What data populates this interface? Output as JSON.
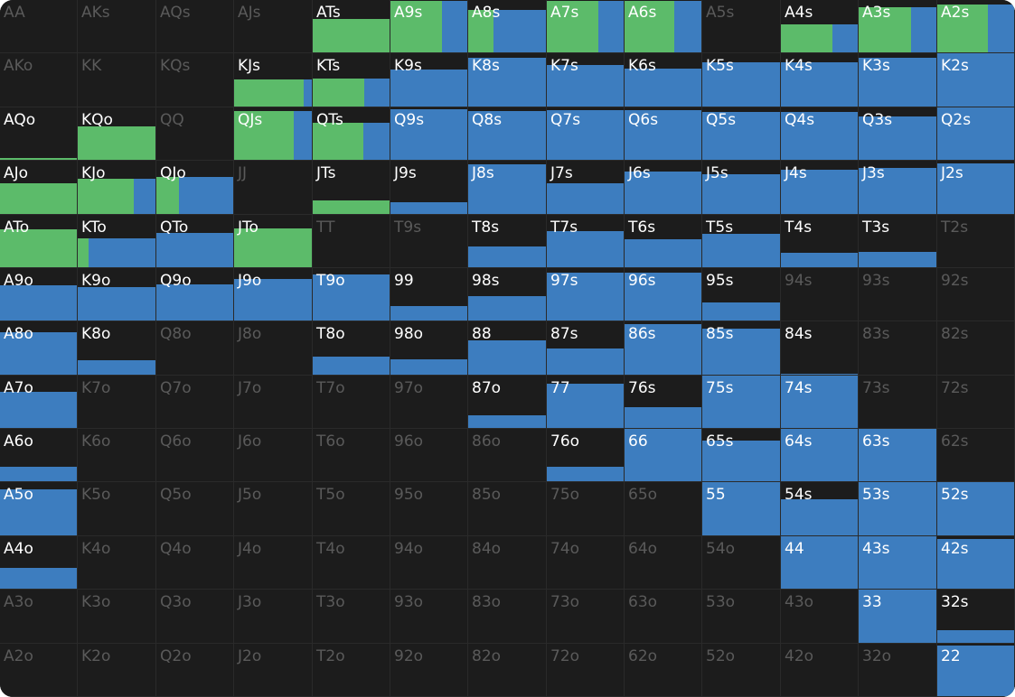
{
  "colors": {
    "background": "#1c1c1c",
    "grid_line": "#2a2a2a",
    "green": "#5cbb6a",
    "blue": "#3d7dbf",
    "label_active": "#ffffff",
    "label_inactive": "#5a5a5a"
  },
  "rows": [
    [
      {
        "label": "AA",
        "freq": 0,
        "green": 0
      },
      {
        "label": "AKs",
        "freq": 0,
        "green": 0
      },
      {
        "label": "AQs",
        "freq": 0,
        "green": 0
      },
      {
        "label": "AJs",
        "freq": 0,
        "green": 0
      },
      {
        "label": "ATs",
        "freq": 0.64,
        "green": 1
      },
      {
        "label": "A9s",
        "freq": 0.98,
        "green": 0.67
      },
      {
        "label": "A8s",
        "freq": 0.81,
        "green": 0.33
      },
      {
        "label": "A7s",
        "freq": 0.98,
        "green": 0.67
      },
      {
        "label": "A6s",
        "freq": 0.98,
        "green": 0.65
      },
      {
        "label": "A5s",
        "freq": 0,
        "green": 0
      },
      {
        "label": "A4s",
        "freq": 0.53,
        "green": 0.67
      },
      {
        "label": "A3s",
        "freq": 0.86,
        "green": 0.67
      },
      {
        "label": "A2s",
        "freq": 0.92,
        "green": 0.66
      }
    ],
    [
      {
        "label": "AKo",
        "freq": 0,
        "green": 0
      },
      {
        "label": "KK",
        "freq": 0,
        "green": 0
      },
      {
        "label": "KQs",
        "freq": 0,
        "green": 0
      },
      {
        "label": "KJs",
        "freq": 0.51,
        "green": 0.9
      },
      {
        "label": "KTs",
        "freq": 0.53,
        "green": 0.67
      },
      {
        "label": "K9s",
        "freq": 0.69,
        "green": 0
      },
      {
        "label": "K8s",
        "freq": 0.92,
        "green": 0
      },
      {
        "label": "K7s",
        "freq": 0.78,
        "green": 0
      },
      {
        "label": "K6s",
        "freq": 0.71,
        "green": 0
      },
      {
        "label": "K5s",
        "freq": 0.83,
        "green": 0
      },
      {
        "label": "K4s",
        "freq": 0.83,
        "green": 0
      },
      {
        "label": "K3s",
        "freq": 0.92,
        "green": 0
      },
      {
        "label": "K2s",
        "freq": 1,
        "green": 0
      }
    ],
    [
      {
        "label": "AQo",
        "freq": 0.03,
        "green": 1
      },
      {
        "label": "KQo",
        "freq": 0.63,
        "green": 1
      },
      {
        "label": "QQ",
        "freq": 0,
        "green": 0
      },
      {
        "label": "QJs",
        "freq": 0.93,
        "green": 0.77
      },
      {
        "label": "QTs",
        "freq": 0.71,
        "green": 0.66
      },
      {
        "label": "Q9s",
        "freq": 0.97,
        "green": 0
      },
      {
        "label": "Q8s",
        "freq": 0.93,
        "green": 0
      },
      {
        "label": "Q7s",
        "freq": 0.95,
        "green": 0
      },
      {
        "label": "Q6s",
        "freq": 0.95,
        "green": 0
      },
      {
        "label": "Q5s",
        "freq": 0.92,
        "green": 0
      },
      {
        "label": "Q4s",
        "freq": 0.92,
        "green": 0
      },
      {
        "label": "Q3s",
        "freq": 0.83,
        "green": 0
      },
      {
        "label": "Q2s",
        "freq": 1,
        "green": 0
      }
    ],
    [
      {
        "label": "AJo",
        "freq": 0.58,
        "green": 1
      },
      {
        "label": "KJo",
        "freq": 0.66,
        "green": 0.72
      },
      {
        "label": "QJo",
        "freq": 0.69,
        "green": 0.29
      },
      {
        "label": "JJ",
        "freq": 0,
        "green": 0
      },
      {
        "label": "JTs",
        "freq": 0.25,
        "green": 1
      },
      {
        "label": "J9s",
        "freq": 0.22,
        "green": 0
      },
      {
        "label": "J8s",
        "freq": 0.93,
        "green": 0
      },
      {
        "label": "J7s",
        "freq": 0.58,
        "green": 0
      },
      {
        "label": "J6s",
        "freq": 0.8,
        "green": 0
      },
      {
        "label": "J5s",
        "freq": 0.75,
        "green": 0
      },
      {
        "label": "J4s",
        "freq": 0.83,
        "green": 0
      },
      {
        "label": "J3s",
        "freq": 0.86,
        "green": 0
      },
      {
        "label": "J2s",
        "freq": 0.95,
        "green": 0
      }
    ],
    [
      {
        "label": "ATo",
        "freq": 0.73,
        "green": 1
      },
      {
        "label": "KTo",
        "freq": 0.56,
        "green": 0.14
      },
      {
        "label": "QTo",
        "freq": 0.66,
        "green": 0
      },
      {
        "label": "JTo",
        "freq": 0.75,
        "green": 1
      },
      {
        "label": "TT",
        "freq": 0,
        "green": 0
      },
      {
        "label": "T9s",
        "freq": 0,
        "green": 0
      },
      {
        "label": "T8s",
        "freq": 0.39,
        "green": 0
      },
      {
        "label": "T7s",
        "freq": 0.69,
        "green": 0
      },
      {
        "label": "T6s",
        "freq": 0.54,
        "green": 0
      },
      {
        "label": "T5s",
        "freq": 0.64,
        "green": 0
      },
      {
        "label": "T4s",
        "freq": 0.27,
        "green": 0
      },
      {
        "label": "T3s",
        "freq": 0.29,
        "green": 0
      },
      {
        "label": "T2s",
        "freq": 0,
        "green": 0
      }
    ],
    [
      {
        "label": "A9o",
        "freq": 0.68,
        "green": 0
      },
      {
        "label": "K9o",
        "freq": 0.63,
        "green": 0
      },
      {
        "label": "Q9o",
        "freq": 0.69,
        "green": 0
      },
      {
        "label": "J9o",
        "freq": 0.8,
        "green": 0
      },
      {
        "label": "T9o",
        "freq": 0.88,
        "green": 0
      },
      {
        "label": "99",
        "freq": 0.27,
        "green": 0
      },
      {
        "label": "98s",
        "freq": 0.46,
        "green": 0
      },
      {
        "label": "97s",
        "freq": 0.92,
        "green": 0
      },
      {
        "label": "96s",
        "freq": 0.92,
        "green": 0
      },
      {
        "label": "95s",
        "freq": 0.34,
        "green": 0
      },
      {
        "label": "94s",
        "freq": 0,
        "green": 0
      },
      {
        "label": "93s",
        "freq": 0,
        "green": 0
      },
      {
        "label": "92s",
        "freq": 0,
        "green": 0
      }
    ],
    [
      {
        "label": "A8o",
        "freq": 0.8,
        "green": 0
      },
      {
        "label": "K8o",
        "freq": 0.27,
        "green": 0
      },
      {
        "label": "Q8o",
        "freq": 0,
        "green": 0
      },
      {
        "label": "J8o",
        "freq": 0,
        "green": 0
      },
      {
        "label": "T8o",
        "freq": 0.34,
        "green": 0
      },
      {
        "label": "98o",
        "freq": 0.29,
        "green": 0
      },
      {
        "label": "88",
        "freq": 0.64,
        "green": 0
      },
      {
        "label": "87s",
        "freq": 0.5,
        "green": 0
      },
      {
        "label": "86s",
        "freq": 0.95,
        "green": 0
      },
      {
        "label": "85s",
        "freq": 0.86,
        "green": 0
      },
      {
        "label": "84s",
        "freq": 0.02,
        "green": 0
      },
      {
        "label": "83s",
        "freq": 0,
        "green": 0
      },
      {
        "label": "82s",
        "freq": 0,
        "green": 0
      }
    ],
    [
      {
        "label": "A7o",
        "freq": 0.69,
        "green": 0
      },
      {
        "label": "K7o",
        "freq": 0,
        "green": 0
      },
      {
        "label": "Q7o",
        "freq": 0,
        "green": 0
      },
      {
        "label": "J7o",
        "freq": 0,
        "green": 0
      },
      {
        "label": "T7o",
        "freq": 0,
        "green": 0
      },
      {
        "label": "97o",
        "freq": 0,
        "green": 0
      },
      {
        "label": "87o",
        "freq": 0.25,
        "green": 0
      },
      {
        "label": "77",
        "freq": 0.85,
        "green": 0
      },
      {
        "label": "76s",
        "freq": 0.39,
        "green": 0
      },
      {
        "label": "75s",
        "freq": 1,
        "green": 0
      },
      {
        "label": "74s",
        "freq": 1,
        "green": 0
      },
      {
        "label": "73s",
        "freq": 0,
        "green": 0
      },
      {
        "label": "72s",
        "freq": 0,
        "green": 0
      }
    ],
    [
      {
        "label": "A6o",
        "freq": 0.27,
        "green": 0
      },
      {
        "label": "K6o",
        "freq": 0,
        "green": 0
      },
      {
        "label": "Q6o",
        "freq": 0,
        "green": 0
      },
      {
        "label": "J6o",
        "freq": 0,
        "green": 0
      },
      {
        "label": "T6o",
        "freq": 0,
        "green": 0
      },
      {
        "label": "96o",
        "freq": 0,
        "green": 0
      },
      {
        "label": "86o",
        "freq": 0,
        "green": 0
      },
      {
        "label": "76o",
        "freq": 0.27,
        "green": 0
      },
      {
        "label": "66",
        "freq": 1,
        "green": 0
      },
      {
        "label": "65s",
        "freq": 0.78,
        "green": 0
      },
      {
        "label": "64s",
        "freq": 1,
        "green": 0
      },
      {
        "label": "63s",
        "freq": 1,
        "green": 0
      },
      {
        "label": "62s",
        "freq": 0,
        "green": 0
      }
    ],
    [
      {
        "label": "A5o",
        "freq": 0.86,
        "green": 0
      },
      {
        "label": "K5o",
        "freq": 0,
        "green": 0
      },
      {
        "label": "Q5o",
        "freq": 0,
        "green": 0
      },
      {
        "label": "J5o",
        "freq": 0,
        "green": 0
      },
      {
        "label": "T5o",
        "freq": 0,
        "green": 0
      },
      {
        "label": "95o",
        "freq": 0,
        "green": 0
      },
      {
        "label": "85o",
        "freq": 0,
        "green": 0
      },
      {
        "label": "75o",
        "freq": 0,
        "green": 0
      },
      {
        "label": "65o",
        "freq": 0,
        "green": 0
      },
      {
        "label": "55",
        "freq": 1,
        "green": 0
      },
      {
        "label": "54s",
        "freq": 0.68,
        "green": 0
      },
      {
        "label": "53s",
        "freq": 1,
        "green": 0
      },
      {
        "label": "52s",
        "freq": 1,
        "green": 0
      }
    ],
    [
      {
        "label": "A4o",
        "freq": 0.39,
        "green": 0
      },
      {
        "label": "K4o",
        "freq": 0,
        "green": 0
      },
      {
        "label": "Q4o",
        "freq": 0,
        "green": 0
      },
      {
        "label": "J4o",
        "freq": 0,
        "green": 0
      },
      {
        "label": "T4o",
        "freq": 0,
        "green": 0
      },
      {
        "label": "94o",
        "freq": 0,
        "green": 0
      },
      {
        "label": "84o",
        "freq": 0,
        "green": 0
      },
      {
        "label": "74o",
        "freq": 0,
        "green": 0
      },
      {
        "label": "64o",
        "freq": 0,
        "green": 0
      },
      {
        "label": "54o",
        "freq": 0,
        "green": 0
      },
      {
        "label": "44",
        "freq": 1,
        "green": 0
      },
      {
        "label": "43s",
        "freq": 1,
        "green": 0
      },
      {
        "label": "42s",
        "freq": 0.95,
        "green": 0
      }
    ],
    [
      {
        "label": "A3o",
        "freq": 0,
        "green": 0
      },
      {
        "label": "K3o",
        "freq": 0,
        "green": 0
      },
      {
        "label": "Q3o",
        "freq": 0,
        "green": 0
      },
      {
        "label": "J3o",
        "freq": 0,
        "green": 0
      },
      {
        "label": "T3o",
        "freq": 0,
        "green": 0
      },
      {
        "label": "93o",
        "freq": 0,
        "green": 0
      },
      {
        "label": "83o",
        "freq": 0,
        "green": 0
      },
      {
        "label": "73o",
        "freq": 0,
        "green": 0
      },
      {
        "label": "63o",
        "freq": 0,
        "green": 0
      },
      {
        "label": "53o",
        "freq": 0,
        "green": 0
      },
      {
        "label": "43o",
        "freq": 0,
        "green": 0
      },
      {
        "label": "33",
        "freq": 1,
        "green": 0
      },
      {
        "label": "32s",
        "freq": 0.24,
        "green": 0
      }
    ],
    [
      {
        "label": "A2o",
        "freq": 0,
        "green": 0
      },
      {
        "label": "K2o",
        "freq": 0,
        "green": 0
      },
      {
        "label": "Q2o",
        "freq": 0,
        "green": 0
      },
      {
        "label": "J2o",
        "freq": 0,
        "green": 0
      },
      {
        "label": "T2o",
        "freq": 0,
        "green": 0
      },
      {
        "label": "92o",
        "freq": 0,
        "green": 0
      },
      {
        "label": "82o",
        "freq": 0,
        "green": 0
      },
      {
        "label": "72o",
        "freq": 0,
        "green": 0
      },
      {
        "label": "62o",
        "freq": 0,
        "green": 0
      },
      {
        "label": "52o",
        "freq": 0,
        "green": 0
      },
      {
        "label": "42o",
        "freq": 0,
        "green": 0
      },
      {
        "label": "32o",
        "freq": 0,
        "green": 0
      },
      {
        "label": "22",
        "freq": 0.97,
        "green": 0
      }
    ]
  ]
}
